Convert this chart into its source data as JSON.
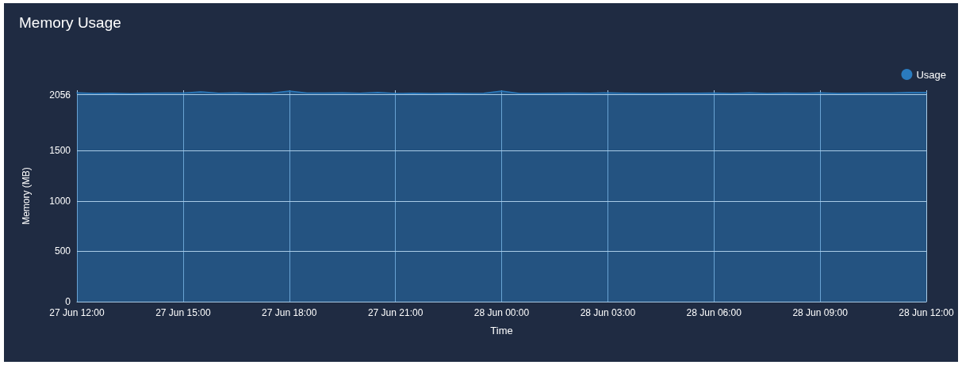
{
  "chart_data": {
    "type": "area",
    "title": "Memory Usage",
    "xlabel": "Time",
    "ylabel": "Memory (MB)",
    "x": [
      "--06-27T12:00",
      "--06-27T12:30",
      "--06-27T13:00",
      "--06-27T13:30",
      "--06-27T14:00",
      "--06-27T14:30",
      "--06-27T15:00",
      "--06-27T15:30",
      "--06-27T16:00",
      "--06-27T16:30",
      "--06-27T17:00",
      "--06-27T17:30",
      "--06-27T18:00",
      "--06-27T18:30",
      "--06-27T19:00",
      "--06-27T19:30",
      "--06-27T20:00",
      "--06-27T20:30",
      "--06-27T21:00",
      "--06-27T21:30",
      "--06-27T22:00",
      "--06-27T22:30",
      "--06-27T23:00",
      "--06-27T23:30",
      "--06-28T00:00",
      "--06-28T00:30",
      "--06-28T01:00",
      "--06-28T01:30",
      "--06-28T02:00",
      "--06-28T02:30",
      "--06-28T03:00",
      "--06-28T03:30",
      "--06-28T04:00",
      "--06-28T04:30",
      "--06-28T05:00",
      "--06-28T05:30",
      "--06-28T06:00",
      "--06-28T06:30",
      "--06-28T07:00",
      "--06-28T07:30",
      "--06-28T08:00",
      "--06-28T08:30",
      "--06-28T09:00",
      "--06-28T09:30",
      "--06-28T10:00",
      "--06-28T10:30",
      "--06-28T11:00",
      "--06-28T11:30",
      "--06-28T12:00"
    ],
    "series": [
      {
        "name": "Usage",
        "color": "#2a7bbf",
        "values": [
          2075,
          2068,
          2070,
          2066,
          2070,
          2072,
          2072,
          2085,
          2070,
          2074,
          2068,
          2072,
          2092,
          2072,
          2072,
          2074,
          2070,
          2078,
          2068,
          2070,
          2068,
          2070,
          2068,
          2070,
          2092,
          2068,
          2068,
          2070,
          2072,
          2070,
          2074,
          2070,
          2068,
          2068,
          2070,
          2070,
          2072,
          2068,
          2074,
          2068,
          2072,
          2070,
          2074,
          2068,
          2070,
          2072,
          2072,
          2078,
          2078
        ]
      }
    ],
    "xlim": [
      "--06-27T12:00",
      "--06-28T12:00"
    ],
    "xticks": [
      {
        "value": "--06-27T12:00",
        "label": "27 Jun 12:00"
      },
      {
        "value": "--06-27T15:00",
        "label": "27 Jun 15:00"
      },
      {
        "value": "--06-27T18:00",
        "label": "27 Jun 18:00"
      },
      {
        "value": "--06-27T21:00",
        "label": "27 Jun 21:00"
      },
      {
        "value": "--06-28T00:00",
        "label": "28 Jun 00:00"
      },
      {
        "value": "--06-28T03:00",
        "label": "28 Jun 03:00"
      },
      {
        "value": "--06-28T06:00",
        "label": "28 Jun 06:00"
      },
      {
        "value": "--06-28T09:00",
        "label": "28 Jun 09:00"
      },
      {
        "value": "--06-28T12:00",
        "label": "28 Jun 12:00"
      }
    ],
    "ylim": [
      0,
      2100
    ],
    "yticks": [
      0,
      500,
      1000,
      1500,
      2056
    ],
    "grid": true,
    "legend": "top right",
    "marker": "none",
    "line_style": "solid"
  }
}
